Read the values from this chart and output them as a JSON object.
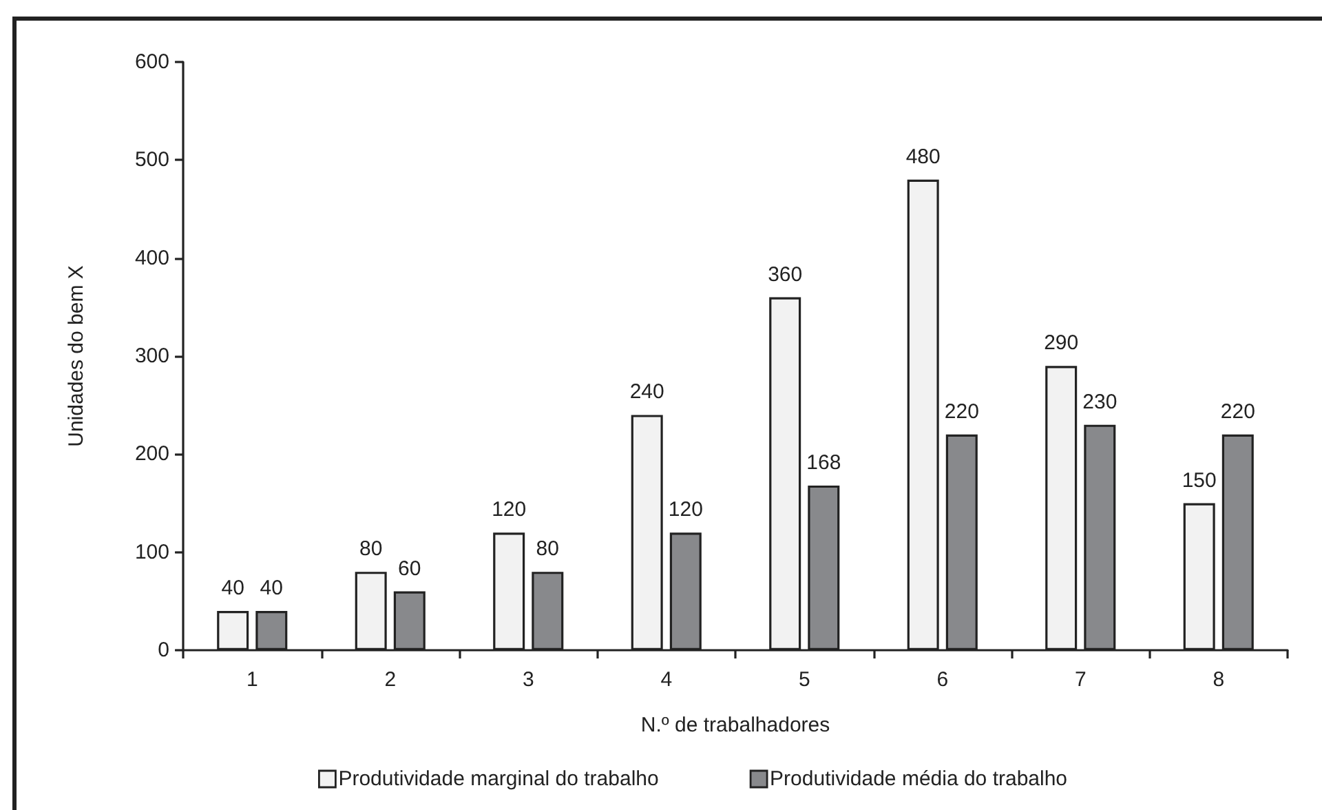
{
  "chart_data": {
    "type": "bar",
    "xlabel": "N.º de trabalhadores",
    "ylabel": "Unidades do bem X",
    "categories": [
      "1",
      "2",
      "3",
      "4",
      "5",
      "6",
      "7",
      "8"
    ],
    "series": [
      {
        "name": "Produtividade marginal do trabalho",
        "color": "#f2f2f2",
        "values": [
          40,
          80,
          120,
          240,
          360,
          480,
          290,
          150
        ]
      },
      {
        "name": "Produtividade média do trabalho",
        "color": "#88898c",
        "values": [
          40,
          60,
          80,
          120,
          168,
          220,
          230,
          220
        ]
      }
    ],
    "ylim": [
      0,
      600
    ],
    "yticks": [
      0,
      100,
      200,
      300,
      400,
      500,
      600
    ],
    "grid": false,
    "legend": "bottom",
    "data_labels": true
  }
}
